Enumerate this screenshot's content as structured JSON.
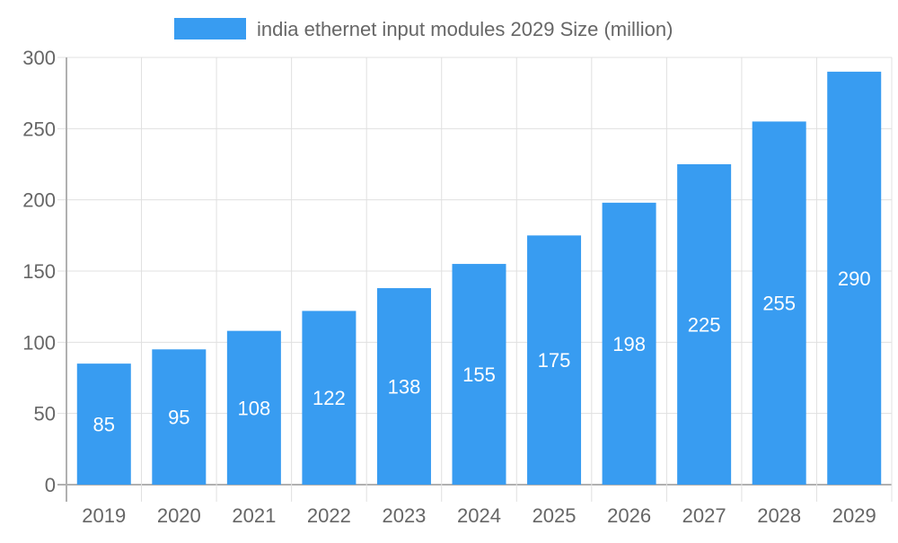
{
  "chart_data": {
    "type": "bar",
    "categories": [
      "2019",
      "2020",
      "2021",
      "2022",
      "2023",
      "2024",
      "2025",
      "2026",
      "2027",
      "2028",
      "2029"
    ],
    "series": [
      {
        "name": "india ethernet input modules 2029 Size (million)",
        "values": [
          85,
          95,
          108,
          122,
          138,
          155,
          175,
          198,
          225,
          255,
          290
        ]
      }
    ],
    "ylim": [
      0,
      300
    ],
    "yticks": [
      0,
      50,
      100,
      150,
      200,
      250,
      300
    ],
    "grid": true,
    "legend": "top-center",
    "data_labels": "inside-bar",
    "colors": {
      "bar": "#389cf1",
      "grid": "#e0e0e0",
      "axis": "#b0b0b0",
      "text": "#666666",
      "label": "#ffffff"
    }
  }
}
